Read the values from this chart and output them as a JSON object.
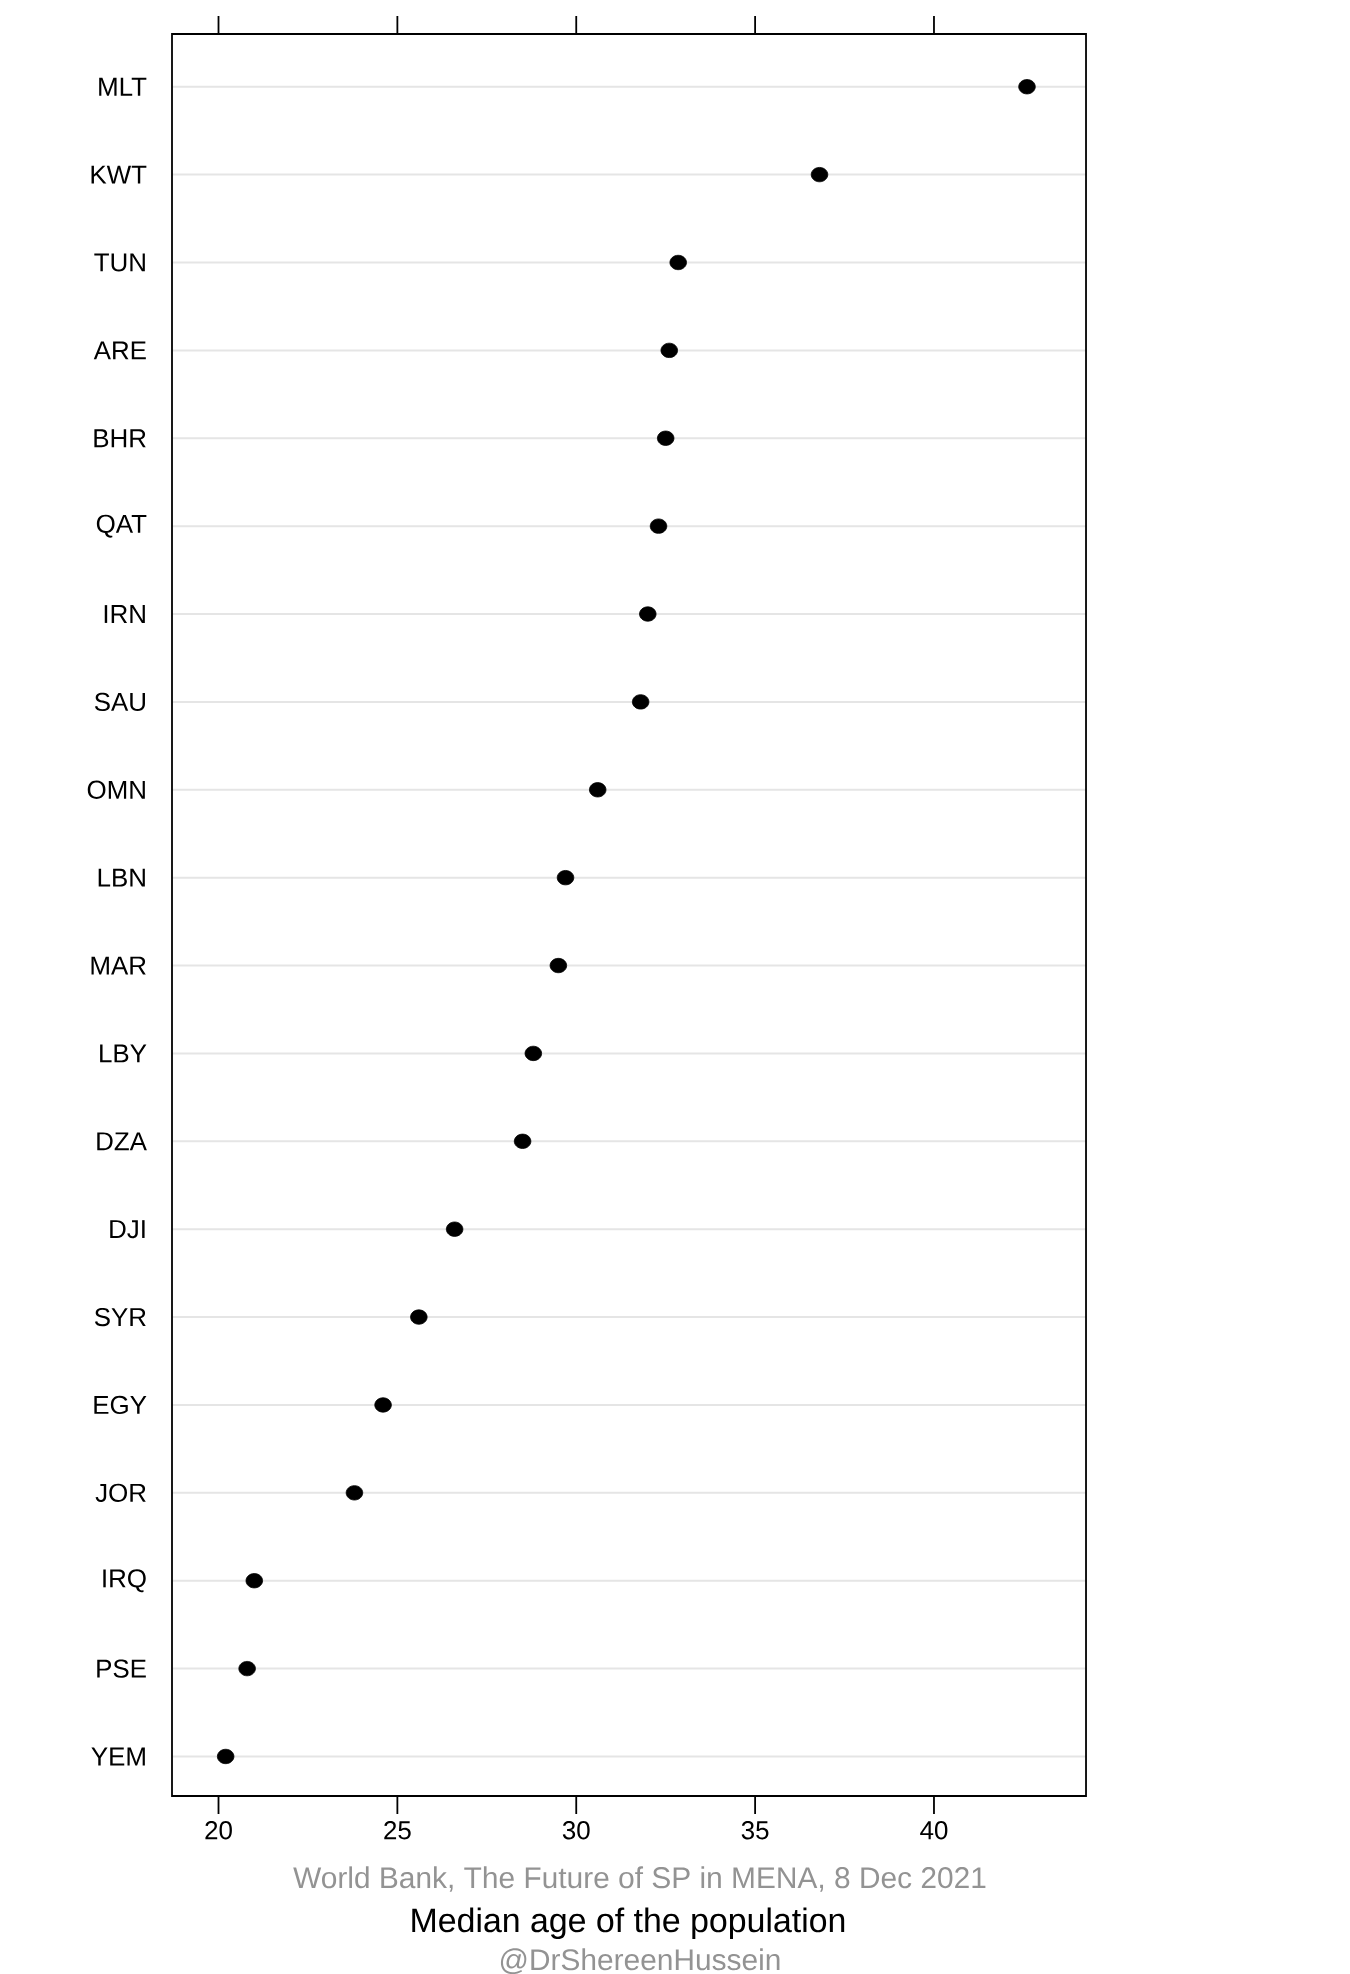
{
  "chart_data": {
    "type": "scatter",
    "orientation": "horizontal",
    "categories": [
      "MLT",
      "KWT",
      "TUN",
      "ARE",
      "BHR",
      "QAT",
      "IRN",
      "SAU",
      "OMN",
      "LBN",
      "MAR",
      "LBY",
      "DZA",
      "DJI",
      "SYR",
      "EGY",
      "JOR",
      "IRQ",
      "PSE",
      "YEM"
    ],
    "values": [
      42.6,
      36.8,
      32.85,
      32.6,
      32.5,
      32.3,
      32.0,
      31.8,
      30.6,
      29.7,
      29.5,
      28.8,
      28.5,
      26.6,
      25.6,
      24.6,
      23.8,
      21.0,
      20.8,
      20.2
    ],
    "color": "#000000",
    "marker": "circle",
    "xlim": [
      18.7,
      44.25
    ],
    "xticks": [
      20,
      25,
      30,
      35,
      40
    ],
    "xlabel": "Median age of the population",
    "grid": "y",
    "annotations": [
      "World Bank, The Future of SP in MENA, 8 Dec 2021",
      "@DrShereenHussein"
    ]
  }
}
